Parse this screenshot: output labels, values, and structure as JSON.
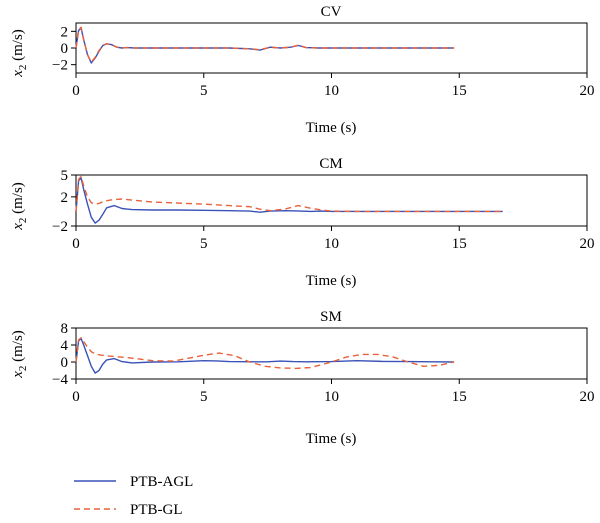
{
  "colors": {
    "PTB-AGL": "#3a52b8",
    "PTB-GL": "#e8623a",
    "axis": "#000000"
  },
  "legend": {
    "placement": "bottom-left",
    "entries": [
      "PTB-AGL",
      "PTB-GL"
    ]
  },
  "chart_data": [
    {
      "type": "line",
      "title": "CV",
      "xlabel": "Time (s)",
      "ylabel_var": "x",
      "ylabel_sub": "2",
      "ylabel_unit": "(m/s)",
      "xlim": [
        0,
        20
      ],
      "ylim": [
        -3,
        3
      ],
      "xticks": [
        0,
        5,
        10,
        15,
        20
      ],
      "yticks": [
        2,
        0,
        -2
      ],
      "grid": false,
      "series": [
        {
          "name": "PTB-AGL",
          "style": "solid",
          "x": [
            0,
            0.1,
            0.2,
            0.3,
            0.45,
            0.6,
            0.75,
            0.9,
            1.05,
            1.2,
            1.4,
            1.6,
            1.8,
            2.0,
            2.3,
            3,
            4,
            5,
            6,
            6.8,
            7.2,
            7.6,
            8.0,
            8.4,
            8.7,
            9.0,
            9.5,
            10,
            11,
            12,
            13,
            14,
            14.8
          ],
          "y": [
            0,
            2.1,
            2.4,
            1.0,
            -0.8,
            -1.8,
            -1.2,
            -0.4,
            0.3,
            0.5,
            0.4,
            0.1,
            0.0,
            0.05,
            0.0,
            0.0,
            0.0,
            0.0,
            0.0,
            -0.1,
            -0.25,
            0.1,
            0.0,
            0.1,
            0.3,
            0.05,
            0.0,
            0.0,
            0.0,
            0.0,
            0.0,
            0.0,
            0.0
          ]
        },
        {
          "name": "PTB-GL",
          "style": "dashed",
          "x": [
            0,
            0.1,
            0.2,
            0.3,
            0.45,
            0.6,
            0.75,
            0.9,
            1.05,
            1.2,
            1.4,
            1.6,
            1.8,
            2.0,
            2.3,
            3,
            4,
            5,
            6,
            6.8,
            7.2,
            7.6,
            8.0,
            8.4,
            8.7,
            9.0,
            9.5,
            10,
            11,
            12,
            13,
            14,
            14.8
          ],
          "y": [
            0,
            2.2,
            2.5,
            1.0,
            -0.8,
            -1.7,
            -1.1,
            -0.3,
            0.3,
            0.5,
            0.4,
            0.1,
            0.0,
            0.05,
            0.0,
            0.0,
            0.0,
            0.0,
            0.0,
            -0.1,
            -0.2,
            0.1,
            0.0,
            0.1,
            0.35,
            0.05,
            0.0,
            0.0,
            0.0,
            0.0,
            0.0,
            0.0,
            0.0
          ]
        }
      ]
    },
    {
      "type": "line",
      "title": "CM",
      "xlabel": "Time (s)",
      "ylabel_var": "x",
      "ylabel_sub": "2",
      "ylabel_unit": "(m/s)",
      "xlim": [
        0,
        20
      ],
      "ylim": [
        -2,
        5
      ],
      "xticks": [
        0,
        5,
        10,
        15,
        20
      ],
      "yticks": [
        5,
        2,
        -2
      ],
      "grid": false,
      "series": [
        {
          "name": "PTB-AGL",
          "style": "solid",
          "x": [
            0,
            0.1,
            0.2,
            0.3,
            0.45,
            0.6,
            0.75,
            0.9,
            1.05,
            1.2,
            1.5,
            1.8,
            2.2,
            3,
            4,
            5,
            6,
            6.8,
            7.2,
            7.6,
            8.2,
            8.8,
            9.2,
            9.6,
            10,
            11,
            12,
            13,
            14,
            15,
            16,
            16.7
          ],
          "y": [
            0,
            4.2,
            4.6,
            3.0,
            1.0,
            -0.8,
            -1.6,
            -1.2,
            -0.4,
            0.5,
            0.8,
            0.4,
            0.25,
            0.2,
            0.2,
            0.15,
            0.1,
            0.05,
            -0.1,
            0.05,
            0.1,
            0.05,
            0.0,
            0.05,
            0.0,
            0.0,
            0.0,
            0.0,
            0.0,
            0.0,
            0.0,
            0.0
          ]
        },
        {
          "name": "PTB-GL",
          "style": "dashed",
          "x": [
            0,
            0.1,
            0.2,
            0.3,
            0.45,
            0.6,
            0.75,
            0.9,
            1.1,
            1.4,
            1.8,
            2.2,
            3,
            4,
            5,
            6,
            6.8,
            7.2,
            7.6,
            8.2,
            8.7,
            9.1,
            9.6,
            10,
            11,
            12,
            13,
            14,
            15,
            16,
            16.7
          ],
          "y": [
            0,
            4.4,
            4.8,
            3.5,
            2.0,
            1.2,
            1.0,
            1.1,
            1.4,
            1.6,
            1.7,
            1.55,
            1.3,
            1.15,
            1.0,
            0.8,
            0.65,
            0.3,
            0.1,
            0.35,
            0.8,
            0.5,
            0.2,
            0.05,
            0.0,
            0.0,
            0.0,
            0.0,
            0.0,
            0.0,
            0.0
          ]
        }
      ]
    },
    {
      "type": "line",
      "title": "SM",
      "xlabel": "Time (s)",
      "ylabel_var": "x",
      "ylabel_sub": "2",
      "ylabel_unit": "(m/s)",
      "xlim": [
        0,
        20
      ],
      "ylim": [
        -4,
        8
      ],
      "xticks": [
        0,
        5,
        10,
        15,
        20
      ],
      "yticks": [
        8,
        4,
        0,
        -4
      ],
      "grid": false,
      "series": [
        {
          "name": "PTB-AGL",
          "style": "solid",
          "x": [
            0,
            0.1,
            0.2,
            0.3,
            0.45,
            0.6,
            0.75,
            0.9,
            1.05,
            1.2,
            1.5,
            1.8,
            2.2,
            3,
            4,
            5,
            5.5,
            6,
            7,
            7.5,
            8,
            8.5,
            9,
            10,
            11,
            12,
            13,
            14,
            14.8
          ],
          "y": [
            0,
            5.0,
            5.5,
            4.0,
            1.5,
            -1.0,
            -2.6,
            -2.0,
            -0.5,
            0.5,
            0.8,
            0.1,
            -0.2,
            0.0,
            0.05,
            0.3,
            0.25,
            0.1,
            0.05,
            0.05,
            0.2,
            0.1,
            0.05,
            0.1,
            0.3,
            0.15,
            0.1,
            0.05,
            0.0
          ]
        },
        {
          "name": "PTB-GL",
          "style": "dashed",
          "x": [
            0,
            0.1,
            0.2,
            0.3,
            0.45,
            0.6,
            0.8,
            1.0,
            1.3,
            1.7,
            2.2,
            3,
            3.8,
            4.5,
            5,
            5.6,
            6.2,
            6.8,
            7.4,
            8.0,
            8.6,
            9.2,
            10,
            10.6,
            11.2,
            11.8,
            12.4,
            13.0,
            13.6,
            14.2,
            14.8
          ],
          "y": [
            0,
            5.2,
            5.7,
            4.8,
            3.5,
            2.4,
            1.8,
            1.6,
            1.4,
            1.2,
            0.9,
            0.3,
            0.2,
            1.0,
            1.6,
            2.1,
            1.5,
            0.0,
            -1.0,
            -1.4,
            -1.5,
            -1.3,
            0.0,
            1.2,
            1.8,
            1.8,
            1.2,
            0.0,
            -1.0,
            -0.8,
            0.0
          ]
        }
      ]
    }
  ]
}
